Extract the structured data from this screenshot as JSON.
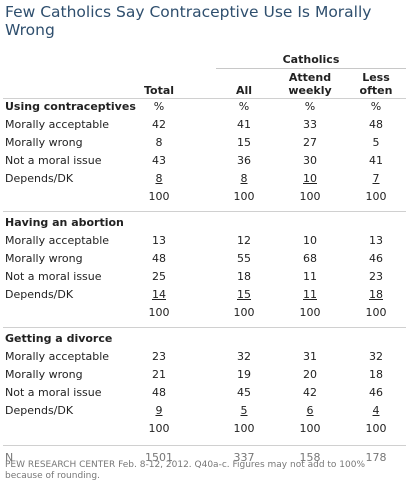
{
  "title": "Few Catholics Say Contraceptive Use Is Morally Wrong",
  "group_header": "Catholics",
  "columns": [
    "Total",
    "All",
    "Attend weekly",
    "Less often"
  ],
  "percent_sign": "%",
  "sections": [
    {
      "heading": "Using contraceptives",
      "rows": [
        {
          "label": "Morally acceptable",
          "values": [
            "42",
            "41",
            "33",
            "48"
          ]
        },
        {
          "label": "Morally wrong",
          "values": [
            "8",
            "15",
            "27",
            "5"
          ]
        },
        {
          "label": "Not a moral issue",
          "values": [
            "43",
            "36",
            "30",
            "41"
          ]
        },
        {
          "label": "Depends/DK",
          "values": [
            "8",
            "8",
            "10",
            "7"
          ]
        }
      ],
      "total": [
        "100",
        "100",
        "100",
        "100"
      ]
    },
    {
      "heading": "Having an abortion",
      "rows": [
        {
          "label": "Morally acceptable",
          "values": [
            "13",
            "12",
            "10",
            "13"
          ]
        },
        {
          "label": "Morally wrong",
          "values": [
            "48",
            "55",
            "68",
            "46"
          ]
        },
        {
          "label": "Not a moral issue",
          "values": [
            "25",
            "18",
            "11",
            "23"
          ]
        },
        {
          "label": "Depends/DK",
          "values": [
            "14",
            "15",
            "11",
            "18"
          ]
        }
      ],
      "total": [
        "100",
        "100",
        "100",
        "100"
      ]
    },
    {
      "heading": "Getting a divorce",
      "rows": [
        {
          "label": "Morally acceptable",
          "values": [
            "23",
            "32",
            "31",
            "32"
          ]
        },
        {
          "label": "Morally wrong",
          "values": [
            "21",
            "19",
            "20",
            "18"
          ]
        },
        {
          "label": "Not a moral issue",
          "values": [
            "48",
            "45",
            "42",
            "46"
          ]
        },
        {
          "label": "Depends/DK",
          "values": [
            "9",
            "5",
            "6",
            "4"
          ]
        }
      ],
      "total": [
        "100",
        "100",
        "100",
        "100"
      ]
    }
  ],
  "n_row": {
    "label": "N",
    "values": [
      "1501",
      "337",
      "158",
      "178"
    ]
  },
  "footer": "PEW RESEARCH CENTER Feb. 8-12, 2012. Q40a-c. Figures may not add to 100% because of rounding."
}
